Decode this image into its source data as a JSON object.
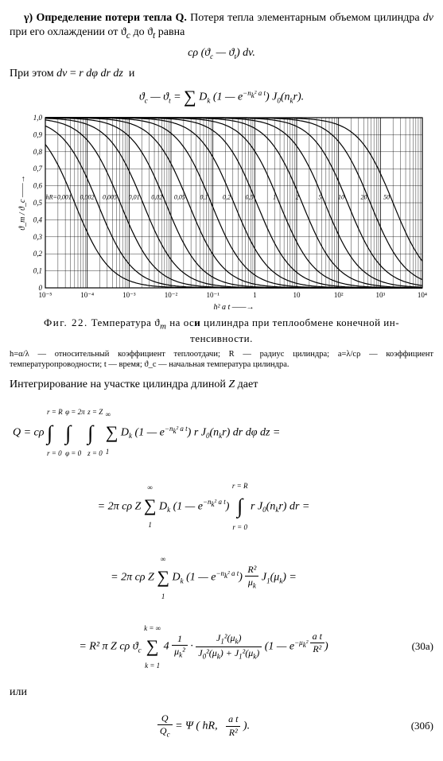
{
  "section": {
    "marker": "γ)",
    "heading": "Определение потери тепла Q.",
    "text1": "Потеря тепла элементарным объемом цилиндра dv при его охлаждении от ϑ_c до ϑ_t равна",
    "eq1": "cρ (ϑ_c — ϑ_t) dv.",
    "text2": "При этом dv = r dφ dr dz и",
    "eq2": "ϑ_c — ϑ_t = Σ D_k (1 — e^{−n_k^2 a t}) J_0(n_k r).",
    "text3": "Интегрирование на участке цилиндра длиной Z дает",
    "finalOr": "или"
  },
  "figure": {
    "number": "Фиг. 22.",
    "caption_main": "Температура ϑ_m на оси цилиндра при теплообмене конечной интенсивности.",
    "fine": "h=α/λ — относительный коэффициент теплоотдачи; R — радиус цилиндра; a=λ/cρ — коэффициент температуропроводности; t — время; ϑ_c — начальная температура цилиндра.",
    "xlabel": "h² a t ——→",
    "ylabel": "ϑ_m / ϑ_c ——→",
    "xlim": [
      1e-05,
      10000.0
    ],
    "ylim": [
      0,
      1.0
    ],
    "yticks": [
      0,
      0.1,
      0.2,
      0.3,
      0.4,
      0.5,
      0.6,
      0.7,
      0.8,
      0.9,
      1.0
    ],
    "ytick_labels": [
      "0",
      "0,1",
      "0,2",
      "0,3",
      "0,4",
      "0,5",
      "0,6",
      "0,7",
      "0,8",
      "0,9",
      "1,0"
    ],
    "xticks": [
      1e-05,
      0.0001,
      0.001,
      0.01,
      0.1,
      1,
      10.0,
      100.0,
      1000.0,
      10000.0
    ],
    "xtick_labels": [
      "10⁻⁵",
      "10⁻⁴",
      "10⁻³",
      "10⁻²",
      "10⁻¹",
      "1",
      "10",
      "10²",
      "10³",
      "10⁴"
    ],
    "hR_values": [
      0.001,
      0.002,
      0.005,
      0.01,
      0.02,
      0.05,
      0.1,
      0.2,
      0.5,
      1,
      2,
      5,
      10,
      20,
      50
    ],
    "hR_labels": [
      "hR=0,001",
      "0,002",
      "0,005",
      "0,01",
      "0,02",
      "0,05",
      "0,1",
      "0,2",
      "0,5",
      "1",
      "2",
      "5",
      "10",
      "20",
      "50"
    ],
    "grid_color": "#000000",
    "line_color": "#000000",
    "background_color": "#ffffff",
    "line_width": 1.2,
    "grid_width": 0.4,
    "tick_fontsize": 9,
    "label_fontsize": 10
  },
  "equations": {
    "eq30a_num": "(30а)",
    "eq30b_num": "(30б)",
    "Q_line1_lhs": "Q = cρ",
    "int1_upper": "r = R",
    "int1_lower": "r = 0",
    "int2_upper": "φ = 2π",
    "int2_lower": "φ = 0",
    "int3_upper": "z = Z",
    "int3_lower": "z = 0",
    "sum_upper": "∞",
    "sum_lower": "1",
    "line1_rhs": "D_k (1 — e^{−n_k² a t}) r J_0(n_k r) dr dφ dz =",
    "line2": "= 2π cρ Z Σ D_k (1 — e^{−n_k² a t}) ∫ r J_0(n_k r) dr =",
    "line3": "= 2π cρ Z Σ D_k (1 — e^{−n_k² a t}) (R² / μ_k) J_1(μ_k) =",
    "line4": "= R² π Z cρ ϑ_c Σ_{k=1}^{k=∞} 4 (1/μ_k²) · J_1²(μ_k) / (J_0²(μ_k)+J_1²(μ_k)) · (1 — e^{−μ_k² a t / R²})",
    "eq30b": "Q / Q_c = Ψ ( hR,  at / R² )."
  }
}
